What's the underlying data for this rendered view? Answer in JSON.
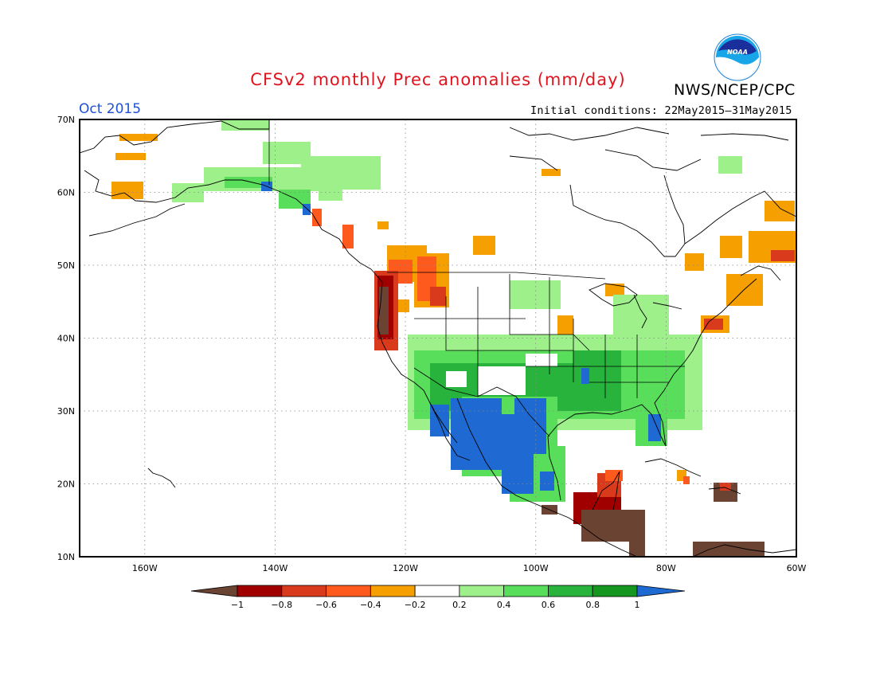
{
  "title": "CFSv2 monthly Prec anomalies (mm/day)",
  "agency": "NWS/NCEP/CPC",
  "logo_text": "NOAA",
  "period": "Oct 2015",
  "initial_conditions": "Initial conditions: 22May2015–31May2015",
  "lat_labels": [
    "70N",
    "60N",
    "50N",
    "40N",
    "30N",
    "20N",
    "10N"
  ],
  "lon_labels": [
    "160W",
    "140W",
    "120W",
    "100W",
    "80W",
    "60W"
  ],
  "colorbar": {
    "tick_labels": [
      "−1",
      "−0.8",
      "−0.6",
      "−0.4",
      "−0.2",
      "0.2",
      "0.4",
      "0.6",
      "0.8",
      "1"
    ],
    "colors": [
      "#6b4332",
      "#a00000",
      "#d93a1c",
      "#ff5a1e",
      "#f5a000",
      "#ffffff",
      "#9ef08a",
      "#58de5a",
      "#28b43c",
      "#15961e",
      "#1e6ad2"
    ]
  },
  "map": {
    "extent": {
      "lon": [
        -170,
        -60
      ],
      "lat": [
        10,
        70
      ]
    },
    "regions": [
      {
        "name": "Pacific Northwest coast",
        "level": "-1",
        "lon": [
          -124.5,
          -122
        ],
        "lat": [
          38,
          47
        ]
      },
      {
        "name": "Washington/Oregon interior",
        "level": "-0.6",
        "lon": [
          -120,
          -114
        ],
        "lat": [
          45,
          49
        ]
      },
      {
        "name": "Central America",
        "level": "-1",
        "lon": [
          -92,
          -84
        ],
        "lat": [
          12,
          19
        ]
      },
      {
        "name": "Southeast Alaska coast",
        "level": "-0.6",
        "lon": [
          -135,
          -130
        ],
        "lat": [
          55,
          58
        ]
      },
      {
        "name": "Northern Mexico and Texas",
        "level": "1",
        "lon": [
          -114,
          -96
        ],
        "lat": [
          20,
          32
        ]
      },
      {
        "name": "Southern US plains",
        "level": "0.8",
        "lon": [
          -110,
          -85
        ],
        "lat": [
          31,
          36
        ]
      },
      {
        "name": "Ohio Valley",
        "level": "0.6",
        "lon": [
          -92,
          -80
        ],
        "lat": [
          36,
          41
        ]
      },
      {
        "name": "Florida",
        "level": "1",
        "lon": [
          -82,
          -80
        ],
        "lat": [
          26,
          28
        ]
      },
      {
        "name": "Southern Alaska",
        "level": "0.4",
        "lon": [
          -150,
          -132
        ],
        "lat": [
          58,
          63
        ]
      },
      {
        "name": "Newfoundland",
        "level": "-0.4",
        "lon": [
          -66,
          -58
        ],
        "lat": [
          48,
          52
        ]
      },
      {
        "name": "New England coast",
        "level": "-0.6",
        "lon": [
          -74,
          -70
        ],
        "lat": [
          41,
          43
        ]
      }
    ]
  }
}
